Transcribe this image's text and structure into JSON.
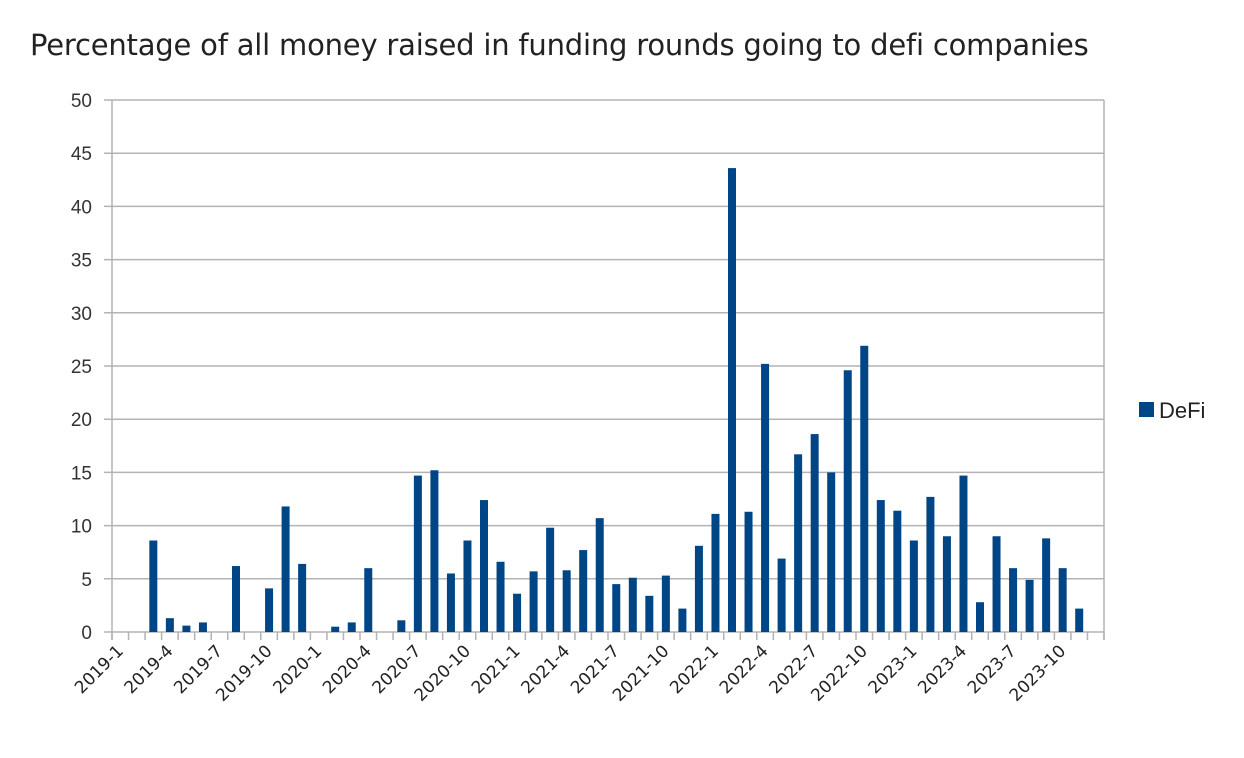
{
  "chart_data": {
    "type": "bar",
    "title": "Percentage of all money raised in funding rounds going to defi companies",
    "xlabel": "",
    "ylabel": "",
    "ylim": [
      0,
      50
    ],
    "yticks": [
      0,
      5,
      10,
      15,
      20,
      25,
      30,
      35,
      40,
      45,
      50
    ],
    "grid": true,
    "legend_position": "right",
    "bar_color": "#004586",
    "x_tick_labels": [
      "2019-1",
      "2019-4",
      "2019-7",
      "2019-10",
      "2020-1",
      "2020-4",
      "2020-7",
      "2020-10",
      "2021-1",
      "2021-4",
      "2021-7",
      "2021-10",
      "2022-1",
      "2022-4",
      "2022-7",
      "2022-10",
      "2023-1",
      "2023-4",
      "2023-7",
      "2023-10"
    ],
    "categories": [
      "2019-1",
      "2019-2",
      "2019-3",
      "2019-4",
      "2019-5",
      "2019-6",
      "2019-7",
      "2019-8",
      "2019-9",
      "2019-10",
      "2019-11",
      "2019-12",
      "2020-1",
      "2020-2",
      "2020-3",
      "2020-4",
      "2020-5",
      "2020-6",
      "2020-7",
      "2020-8",
      "2020-9",
      "2020-10",
      "2020-11",
      "2020-12",
      "2021-1",
      "2021-2",
      "2021-3",
      "2021-4",
      "2021-5",
      "2021-6",
      "2021-7",
      "2021-8",
      "2021-9",
      "2021-10",
      "2021-11",
      "2021-12",
      "2022-1",
      "2022-2",
      "2022-3",
      "2022-4",
      "2022-5",
      "2022-6",
      "2022-7",
      "2022-8",
      "2022-9",
      "2022-10",
      "2022-11",
      "2022-12",
      "2023-1",
      "2023-2",
      "2023-3",
      "2023-4",
      "2023-5",
      "2023-6",
      "2023-7",
      "2023-8",
      "2023-9",
      "2023-10",
      "2023-11",
      "2023-12"
    ],
    "series": [
      {
        "name": "DeFi",
        "color": "#004586",
        "values": [
          0,
          0,
          8.6,
          1.3,
          0.6,
          0.9,
          0,
          6.2,
          0,
          4.1,
          11.8,
          6.4,
          0,
          0.5,
          0.9,
          6.0,
          0,
          1.1,
          14.7,
          15.2,
          5.5,
          8.6,
          12.4,
          6.6,
          3.6,
          5.7,
          9.8,
          5.8,
          7.7,
          10.7,
          4.5,
          5.1,
          3.4,
          5.3,
          2.2,
          8.1,
          11.1,
          43.6,
          11.3,
          25.2,
          6.9,
          16.7,
          18.6,
          15.0,
          24.6,
          26.9,
          12.4,
          11.4,
          8.6,
          12.7,
          9.0,
          14.7,
          2.8,
          9.0,
          6.0,
          4.9,
          8.8,
          6.0,
          2.2,
          0
        ]
      }
    ]
  },
  "legend": {
    "items": [
      {
        "label": "DeFi",
        "color": "#004586"
      }
    ]
  }
}
